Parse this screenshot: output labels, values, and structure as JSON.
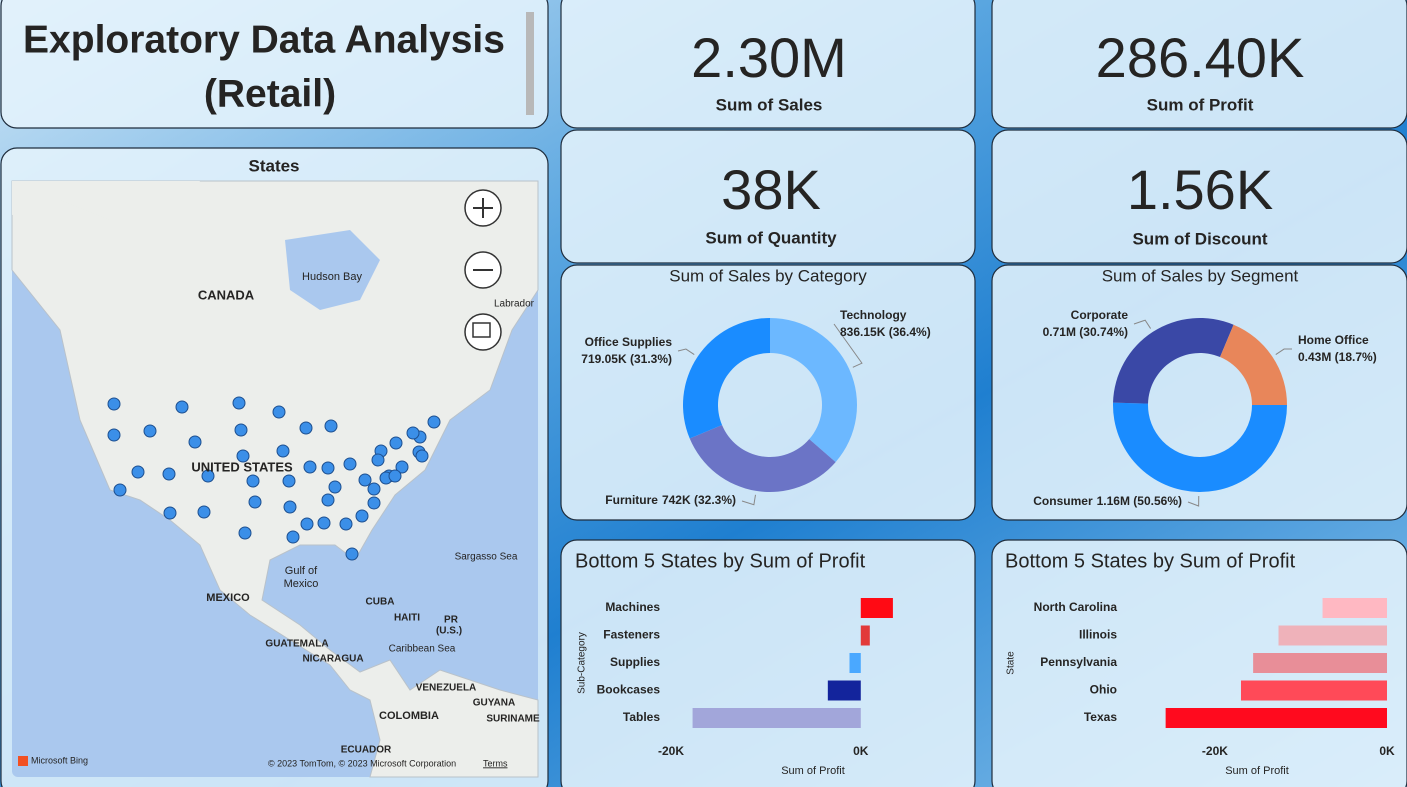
{
  "header": {
    "title_line1": "Exploratory Data Analysis",
    "title_line2": "(Retail)"
  },
  "kpis": [
    {
      "value": "2.30M",
      "label": "Sum of Sales"
    },
    {
      "value": "286.40K",
      "label": "Sum of Profit"
    },
    {
      "value": "38K",
      "label": "Sum of Quantity"
    },
    {
      "value": "1.56K",
      "label": "Sum of Discount"
    }
  ],
  "map": {
    "title": "States",
    "labels": [
      "CANADA",
      "UNITED STATES",
      "MEXICO",
      "Hudson Bay",
      "Labrador",
      "Gulf of",
      "Mexico",
      "Sargasso Sea",
      "CUBA",
      "HAITI",
      "PR",
      "(U.S.)",
      "GUATEMALA",
      "NICARAGUA",
      "Caribbean Sea",
      "VENEZUELA",
      "GUYANA",
      "SURINAME",
      "COLOMBIA",
      "ECUADOR"
    ],
    "brand": "Microsoft Bing",
    "attribution": "© 2023 TomTom, © 2023 Microsoft Corporation",
    "terms": "Terms"
  },
  "chart_data": [
    {
      "type": "donut",
      "title": "Sum of Sales by Category",
      "categories": [
        "Technology",
        "Furniture",
        "Office Supplies"
      ],
      "values": [
        836150,
        742000,
        719050
      ],
      "value_labels": [
        "836.15K (36.4%)",
        "742K (32.3%)",
        "719.05K (31.3%)"
      ],
      "colors": [
        "#6cb8ff",
        "#6b74c6",
        "#1a8cff"
      ]
    },
    {
      "type": "donut",
      "title": "Sum of Sales by Segment",
      "categories": [
        "Consumer",
        "Corporate",
        "Home Office"
      ],
      "values": [
        1160000,
        710000,
        430000
      ],
      "value_labels": [
        "1.16M (50.56%)",
        "0.71M (30.74%)",
        "0.43M (18.7%)"
      ],
      "colors": [
        "#1a8cff",
        "#3a48a6",
        "#e8865a"
      ]
    },
    {
      "type": "hbar",
      "title": "Bottom 5 States by Sum of Profit",
      "categories": [
        "Machines",
        "Fasteners",
        "Supplies",
        "Bookcases",
        "Tables"
      ],
      "values": [
        3385,
        950,
        -1189,
        -3473,
        -17725
      ],
      "colors": [
        "#ff0a14",
        "#e23a3a",
        "#4aa8ff",
        "#13249c",
        "#a2a6da"
      ],
      "xlabel": "Sum of Profit",
      "ylabel": "Sub-Category",
      "xlim": [
        -22000,
        3500
      ],
      "xticks": [
        {
          "value": -20000,
          "label": "-20K"
        },
        {
          "value": 0,
          "label": "0K"
        }
      ]
    },
    {
      "type": "hbar",
      "title": "Bottom 5 States by Sum of Profit",
      "categories": [
        "North Carolina",
        "Illinois",
        "Pennsylvania",
        "Ohio",
        "Texas"
      ],
      "values": [
        -7491,
        -12608,
        -15560,
        -16971,
        -25729
      ],
      "colors": [
        "#ffb8c2",
        "#efb2ba",
        "#e88e98",
        "#ff4a58",
        "#ff0a1e"
      ],
      "xlabel": "Sum of Profit",
      "ylabel": "State",
      "xlim": [
        -26500,
        0
      ],
      "xticks": [
        {
          "value": -20000,
          "label": "-20K"
        },
        {
          "value": 0,
          "label": "0K"
        }
      ]
    }
  ]
}
